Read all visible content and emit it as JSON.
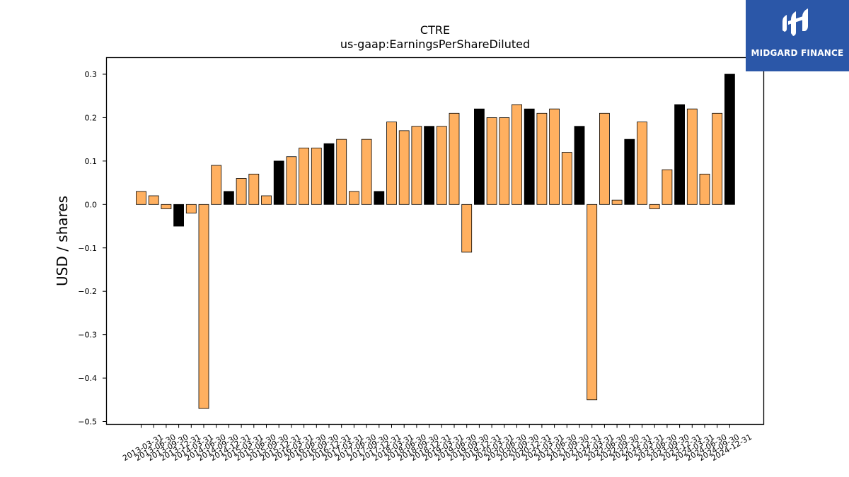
{
  "chart_data": {
    "type": "bar",
    "title": "CTRE",
    "subtitle": "us-gaap:EarningsPerShareDiluted",
    "ylabel": "USD / shares",
    "xlabel": "",
    "ylim": [
      -0.5,
      0.3
    ],
    "yticks": [
      -0.5,
      -0.4,
      -0.3,
      -0.2,
      -0.1,
      0.0,
      0.1,
      0.2,
      0.3
    ],
    "ytick_labels": [
      "−0.5",
      "−0.4",
      "−0.3",
      "−0.2",
      "−0.1",
      "0.0",
      "0.1",
      "0.2",
      "0.3"
    ],
    "grid": false,
    "categories": [
      "2013-03-31",
      "2013-06-30",
      "2013-09-30",
      "2013-12-31",
      "2014-03-31",
      "2014-06-30",
      "2014-09-30",
      "2014-12-31",
      "2015-03-31",
      "2015-06-30",
      "2015-09-30",
      "2015-12-31",
      "2016-03-31",
      "2016-06-30",
      "2016-09-30",
      "2016-12-31",
      "2017-03-31",
      "2017-06-30",
      "2017-09-30",
      "2017-12-31",
      "2018-03-31",
      "2018-06-30",
      "2018-09-30",
      "2018-12-31",
      "2019-03-31",
      "2019-06-30",
      "2019-09-30",
      "2019-12-31",
      "2020-03-31",
      "2020-06-30",
      "2020-09-30",
      "2020-12-31",
      "2021-03-31",
      "2021-06-30",
      "2021-09-30",
      "2021-12-31",
      "2022-03-31",
      "2022-06-30",
      "2022-09-30",
      "2022-12-31",
      "2023-03-31",
      "2023-06-30",
      "2023-09-30",
      "2023-12-31",
      "2024-03-31",
      "2024-06-30",
      "2024-09-30",
      "2024-12-31"
    ],
    "values": [
      0.03,
      0.02,
      -0.01,
      -0.05,
      -0.02,
      -0.47,
      0.09,
      0.03,
      0.06,
      0.07,
      0.02,
      0.1,
      0.11,
      0.13,
      0.13,
      0.14,
      0.15,
      0.03,
      0.15,
      0.03,
      0.19,
      0.17,
      0.18,
      0.18,
      0.18,
      0.21,
      -0.11,
      0.22,
      0.2,
      0.2,
      0.23,
      0.22,
      0.21,
      0.22,
      0.12,
      0.18,
      -0.45,
      0.21,
      0.01,
      0.15,
      0.19,
      -0.01,
      0.08,
      0.23,
      0.22,
      0.07,
      0.21,
      0.3
    ],
    "bar_colors": [
      "#ffb060",
      "#ffb060",
      "#ffb060",
      "#000000",
      "#ffb060",
      "#ffb060",
      "#ffb060",
      "#000000",
      "#ffb060",
      "#ffb060",
      "#ffb060",
      "#000000",
      "#ffb060",
      "#ffb060",
      "#ffb060",
      "#000000",
      "#ffb060",
      "#ffb060",
      "#ffb060",
      "#000000",
      "#ffb060",
      "#ffb060",
      "#ffb060",
      "#000000",
      "#ffb060",
      "#ffb060",
      "#ffb060",
      "#000000",
      "#ffb060",
      "#ffb060",
      "#ffb060",
      "#000000",
      "#ffb060",
      "#ffb060",
      "#ffb060",
      "#000000",
      "#ffb060",
      "#ffb060",
      "#ffb060",
      "#000000",
      "#ffb060",
      "#ffb060",
      "#ffb060",
      "#000000",
      "#ffb060",
      "#ffb060",
      "#ffb060",
      "#000000"
    ]
  },
  "logo": {
    "text": "MIDGARD FINANCE",
    "background": "#2b57a8"
  }
}
